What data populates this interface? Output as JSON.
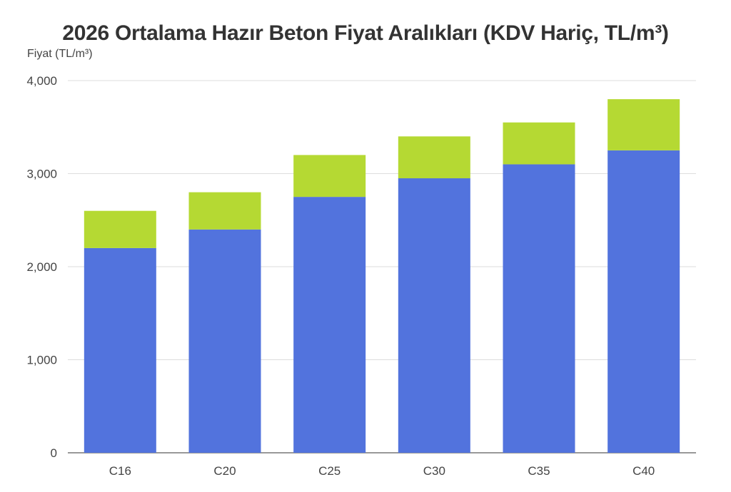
{
  "chart_data": {
    "type": "bar",
    "stacked": true,
    "title": "2026 Ortalama Hazır Beton Fiyat Aralıkları (KDV Hariç, TL/m³)",
    "xlabel": "",
    "ylabel": "Fiyat (TL/m³)",
    "categories": [
      "C16",
      "C20",
      "C25",
      "C30",
      "C35",
      "C40"
    ],
    "series": [
      {
        "values": [
          2200,
          2400,
          2750,
          2950,
          3100,
          3250
        ],
        "color": "#5273DD"
      },
      {
        "values": [
          400,
          400,
          450,
          450,
          450,
          550
        ],
        "color": "#B5D933"
      }
    ],
    "ylim": [
      0,
      4000
    ],
    "yticks": [
      0,
      1000,
      2000,
      3000,
      4000
    ],
    "ytick_labels": [
      "0",
      "1,000",
      "2,000",
      "3,000",
      "4,000"
    ],
    "grid": true,
    "legend": "none"
  }
}
